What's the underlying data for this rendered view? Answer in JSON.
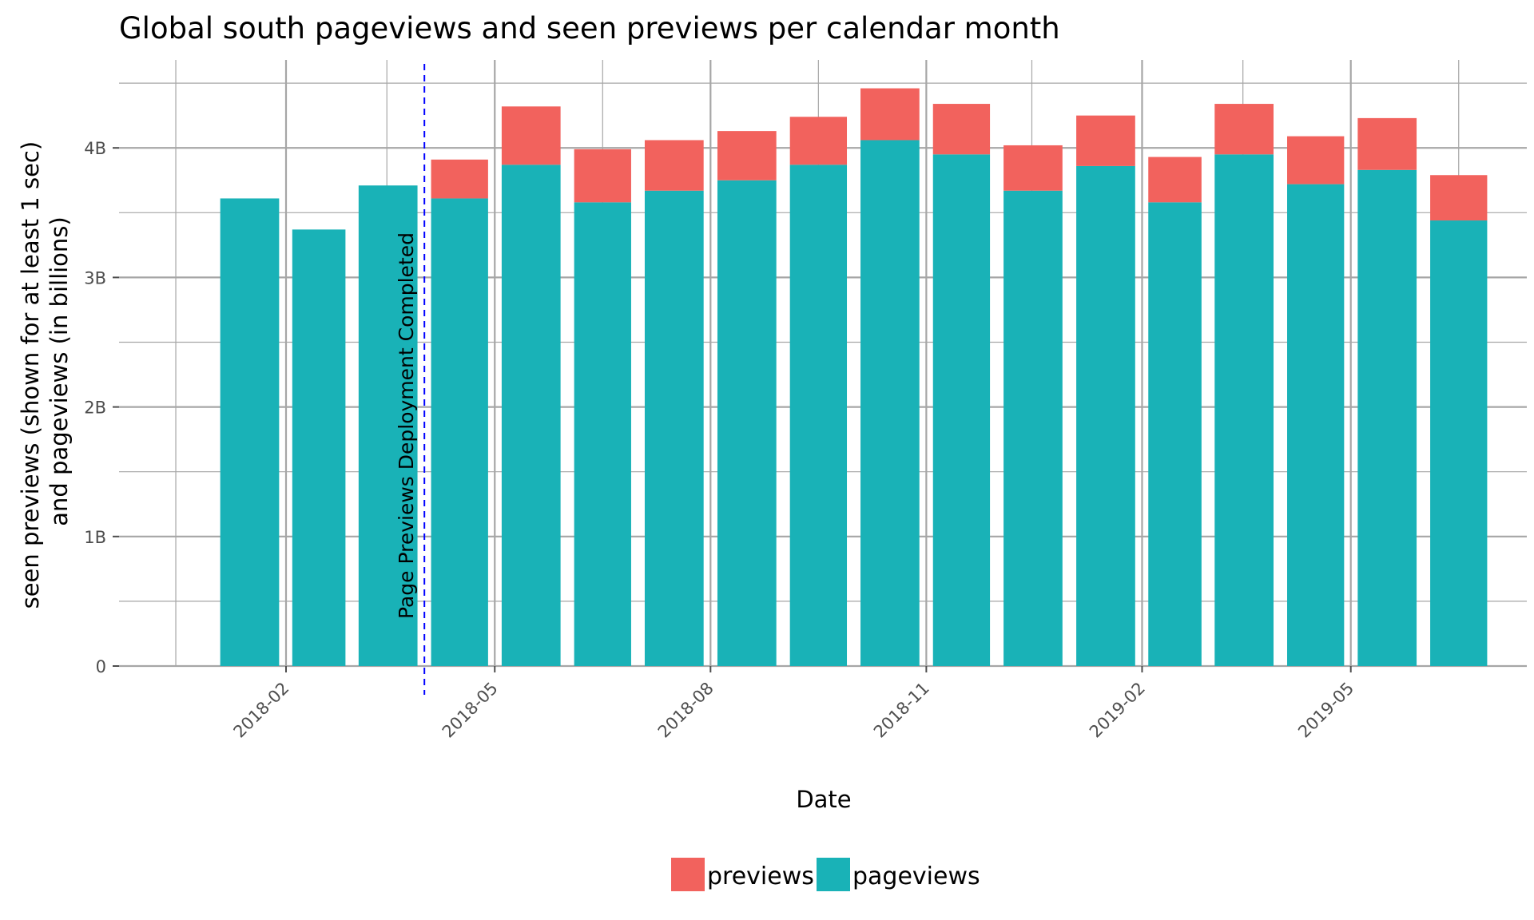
{
  "chart_data": {
    "type": "bar",
    "stacked": true,
    "title": "Global south pageviews and seen previews per calendar month",
    "xlabel": "Date",
    "ylabel": [
      "seen previews (shown for at least  1  sec)",
      "and pageviews (in billions)"
    ],
    "ylim": [
      0,
      4.6
    ],
    "yticks": [
      {
        "value": 0,
        "label": "0"
      },
      {
        "value": 1,
        "label": "1B"
      },
      {
        "value": 2,
        "label": "2B"
      },
      {
        "value": 3,
        "label": "3B"
      },
      {
        "value": 4,
        "label": "4B"
      }
    ],
    "xticks": [
      "2018-02",
      "2018-05",
      "2018-08",
      "2018-11",
      "2019-02",
      "2019-05"
    ],
    "categories": [
      "2018-01",
      "2018-02",
      "2018-03",
      "2018-04",
      "2018-05",
      "2018-06",
      "2018-07",
      "2018-08",
      "2018-09",
      "2018-10",
      "2018-11",
      "2018-12",
      "2019-01",
      "2019-02",
      "2019-03",
      "2019-04",
      "2019-05",
      "2019-06"
    ],
    "series": [
      {
        "name": "pageviews",
        "color": "#19b2b7",
        "values": [
          3.61,
          3.37,
          3.71,
          3.61,
          3.87,
          3.58,
          3.67,
          3.75,
          3.87,
          4.06,
          3.95,
          3.67,
          3.86,
          3.58,
          3.95,
          3.72,
          3.83,
          3.44
        ]
      },
      {
        "name": "previews",
        "color": "#f2625d",
        "values": [
          0,
          0,
          0,
          0.3,
          0.45,
          0.41,
          0.39,
          0.38,
          0.37,
          0.4,
          0.39,
          0.35,
          0.39,
          0.35,
          0.39,
          0.37,
          0.4,
          0.35
        ]
      }
    ],
    "legend": {
      "position": "bottom",
      "order": [
        "previews",
        "pageviews"
      ]
    },
    "annotation": {
      "text": "Page Previews Deployment Completed",
      "x": "2018-04-01",
      "line_color": "#0000ff",
      "line_style": "dashed"
    },
    "grid": true
  }
}
